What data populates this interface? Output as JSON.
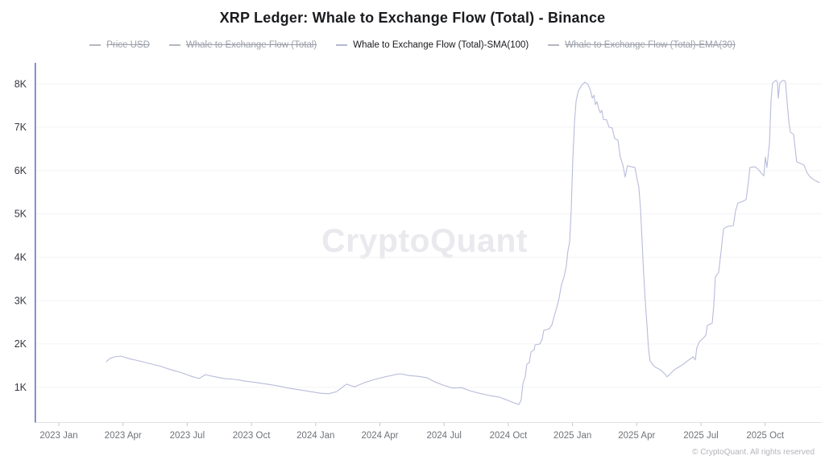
{
  "header": {
    "title": "XRP Ledger: Whale to Exchange Flow (Total) - Binance"
  },
  "watermark": {
    "text": "CryptoQuant"
  },
  "footer": {
    "copyright": "© CryptoQuant. All rights reserved"
  },
  "colors": {
    "line": "#b8bcda",
    "y_axis_line": "#6e70c4",
    "x_axis_line": "#e2e2e6",
    "grid": "#f3f3f6",
    "tick_mark": "#c9c9ce",
    "x_label": "#6f7378",
    "y_label": "#36383f",
    "legend_active_text": "#17181c",
    "legend_disabled_text": "#9a9ea8",
    "watermark_text": "#e9e9ee"
  },
  "chart_data": {
    "type": "line",
    "title": "XRP Ledger: Whale to Exchange Flow (Total) - Binance",
    "xlabel": "",
    "ylabel": "",
    "value_unit": "thousands (K)",
    "x_unit": "decimal year",
    "grid": "horizontal",
    "legend_position": "top",
    "ylim_thousands": [
      0,
      8.6
    ],
    "legend_entries": [
      {
        "label": "Price USD",
        "active": false
      },
      {
        "label": "Whale to Exchange Flow (Total)",
        "active": false
      },
      {
        "label": "Whale to Exchange Flow (Total)-SMA(100)",
        "active": true
      },
      {
        "label": "Whale to Exchange Flow (Total)-EMA(30)",
        "active": false
      }
    ],
    "y_ticks": [
      {
        "label": "1K",
        "v": 1
      },
      {
        "label": "2K",
        "v": 2
      },
      {
        "label": "3K",
        "v": 3
      },
      {
        "label": "4K",
        "v": 4
      },
      {
        "label": "5K",
        "v": 5
      },
      {
        "label": "6K",
        "v": 6
      },
      {
        "label": "7K",
        "v": 7
      },
      {
        "label": "8K",
        "v": 8
      }
    ],
    "x_ticks": [
      {
        "label": "2023 Jan",
        "t": 2023.0
      },
      {
        "label": "2023 Apr",
        "t": 2023.25
      },
      {
        "label": "2023 Jul",
        "t": 2023.5
      },
      {
        "label": "2023 Oct",
        "t": 2023.75
      },
      {
        "label": "2024 Jan",
        "t": 2024.0
      },
      {
        "label": "2024 Apr",
        "t": 2024.25
      },
      {
        "label": "2024 Jul",
        "t": 2024.5
      },
      {
        "label": "2024 Oct",
        "t": 2024.75
      },
      {
        "label": "2025 Jan",
        "t": 2025.0
      },
      {
        "label": "2025 Apr",
        "t": 2025.25
      },
      {
        "label": "2025 Jul",
        "t": 2025.5
      },
      {
        "label": "2025 Oct",
        "t": 2025.75
      }
    ],
    "series": [
      {
        "name": "Whale to Exchange Flow (Total)-SMA(100)",
        "visible": true,
        "points": [
          [
            2023.185,
            1.59
          ],
          [
            2023.198,
            1.66
          ],
          [
            2023.216,
            1.7
          ],
          [
            2023.242,
            1.72
          ],
          [
            2023.273,
            1.66
          ],
          [
            2023.311,
            1.61
          ],
          [
            2023.351,
            1.55
          ],
          [
            2023.398,
            1.48
          ],
          [
            2023.439,
            1.4
          ],
          [
            2023.48,
            1.33
          ],
          [
            2023.518,
            1.25
          ],
          [
            2023.546,
            1.2
          ],
          [
            2023.571,
            1.29
          ],
          [
            2023.602,
            1.25
          ],
          [
            2023.643,
            1.2
          ],
          [
            2023.687,
            1.18
          ],
          [
            2023.728,
            1.14
          ],
          [
            2023.768,
            1.11
          ],
          [
            2023.812,
            1.07
          ],
          [
            2023.853,
            1.03
          ],
          [
            2023.894,
            0.98
          ],
          [
            2023.938,
            0.94
          ],
          [
            2023.979,
            0.9
          ],
          [
            2024.019,
            0.86
          ],
          [
            2024.051,
            0.85
          ],
          [
            2024.082,
            0.9
          ],
          [
            2024.12,
            1.07
          ],
          [
            2024.151,
            1.01
          ],
          [
            2024.192,
            1.11
          ],
          [
            2024.23,
            1.18
          ],
          [
            2024.27,
            1.24
          ],
          [
            2024.308,
            1.29
          ],
          [
            2024.33,
            1.31
          ],
          [
            2024.364,
            1.27
          ],
          [
            2024.402,
            1.25
          ],
          [
            2024.433,
            1.22
          ],
          [
            2024.465,
            1.12
          ],
          [
            2024.496,
            1.05
          ],
          [
            2024.534,
            0.98
          ],
          [
            2024.568,
            0.99
          ],
          [
            2024.6,
            0.92
          ],
          [
            2024.637,
            0.86
          ],
          [
            2024.675,
            0.81
          ],
          [
            2024.716,
            0.77
          ],
          [
            2024.747,
            0.7
          ],
          [
            2024.772,
            0.64
          ],
          [
            2024.791,
            0.6
          ],
          [
            2024.8,
            0.7
          ],
          [
            2024.807,
            1.09
          ],
          [
            2024.816,
            1.24
          ],
          [
            2024.822,
            1.53
          ],
          [
            2024.832,
            1.57
          ],
          [
            2024.838,
            1.81
          ],
          [
            2024.851,
            1.87
          ],
          [
            2024.854,
            1.98
          ],
          [
            2024.873,
            2.0
          ],
          [
            2024.882,
            2.11
          ],
          [
            2024.888,
            2.31
          ],
          [
            2024.91,
            2.35
          ],
          [
            2024.92,
            2.44
          ],
          [
            2024.929,
            2.65
          ],
          [
            2024.938,
            2.82
          ],
          [
            2024.948,
            3.06
          ],
          [
            2024.957,
            3.37
          ],
          [
            2024.967,
            3.54
          ],
          [
            2024.976,
            3.8
          ],
          [
            2024.982,
            4.14
          ],
          [
            2024.989,
            4.36
          ],
          [
            2024.995,
            5.1
          ],
          [
            2025.001,
            6.22
          ],
          [
            2025.008,
            7.15
          ],
          [
            2025.014,
            7.61
          ],
          [
            2025.023,
            7.84
          ],
          [
            2025.036,
            7.97
          ],
          [
            2025.048,
            8.04
          ],
          [
            2025.061,
            7.98
          ],
          [
            2025.07,
            7.85
          ],
          [
            2025.077,
            7.67
          ],
          [
            2025.083,
            7.74
          ],
          [
            2025.089,
            7.52
          ],
          [
            2025.095,
            7.59
          ],
          [
            2025.102,
            7.43
          ],
          [
            2025.108,
            7.33
          ],
          [
            2025.114,
            7.39
          ],
          [
            2025.12,
            7.18
          ],
          [
            2025.133,
            7.17
          ],
          [
            2025.142,
            7.0
          ],
          [
            2025.155,
            6.98
          ],
          [
            2025.164,
            6.74
          ],
          [
            2025.177,
            6.7
          ],
          [
            2025.186,
            6.31
          ],
          [
            2025.196,
            6.13
          ],
          [
            2025.205,
            5.85
          ],
          [
            2025.214,
            6.11
          ],
          [
            2025.227,
            6.09
          ],
          [
            2025.243,
            6.07
          ],
          [
            2025.252,
            5.79
          ],
          [
            2025.258,
            5.62
          ],
          [
            2025.265,
            5.1
          ],
          [
            2025.271,
            4.36
          ],
          [
            2025.277,
            3.62
          ],
          [
            2025.283,
            3.02
          ],
          [
            2025.29,
            2.41
          ],
          [
            2025.296,
            1.87
          ],
          [
            2025.302,
            1.61
          ],
          [
            2025.312,
            1.52
          ],
          [
            2025.324,
            1.46
          ],
          [
            2025.343,
            1.4
          ],
          [
            2025.359,
            1.31
          ],
          [
            2025.368,
            1.24
          ],
          [
            2025.381,
            1.31
          ],
          [
            2025.396,
            1.4
          ],
          [
            2025.412,
            1.46
          ],
          [
            2025.431,
            1.53
          ],
          [
            2025.453,
            1.63
          ],
          [
            2025.469,
            1.7
          ],
          [
            2025.478,
            1.63
          ],
          [
            2025.484,
            1.91
          ],
          [
            2025.494,
            2.05
          ],
          [
            2025.509,
            2.13
          ],
          [
            2025.519,
            2.2
          ],
          [
            2025.525,
            2.43
          ],
          [
            2025.544,
            2.48
          ],
          [
            2025.55,
            2.87
          ],
          [
            2025.556,
            3.54
          ],
          [
            2025.569,
            3.65
          ],
          [
            2025.579,
            4.17
          ],
          [
            2025.588,
            4.66
          ],
          [
            2025.604,
            4.71
          ],
          [
            2025.626,
            4.73
          ],
          [
            2025.635,
            5.07
          ],
          [
            2025.644,
            5.25
          ],
          [
            2025.663,
            5.29
          ],
          [
            2025.676,
            5.33
          ],
          [
            2025.685,
            5.75
          ],
          [
            2025.691,
            6.07
          ],
          [
            2025.71,
            6.09
          ],
          [
            2025.723,
            6.03
          ],
          [
            2025.735,
            5.94
          ],
          [
            2025.745,
            5.88
          ],
          [
            2025.751,
            6.31
          ],
          [
            2025.757,
            6.07
          ],
          [
            2025.767,
            6.63
          ],
          [
            2025.773,
            7.61
          ],
          [
            2025.779,
            8.02
          ],
          [
            2025.792,
            8.08
          ],
          [
            2025.798,
            8.04
          ],
          [
            2025.801,
            7.67
          ],
          [
            2025.807,
            8.02
          ],
          [
            2025.82,
            8.08
          ],
          [
            2025.829,
            8.06
          ],
          [
            2025.836,
            7.56
          ],
          [
            2025.842,
            7.15
          ],
          [
            2025.848,
            6.89
          ],
          [
            2025.861,
            6.83
          ],
          [
            2025.867,
            6.5
          ],
          [
            2025.873,
            6.2
          ],
          [
            2025.889,
            6.16
          ],
          [
            2025.901,
            6.13
          ],
          [
            2025.914,
            5.94
          ],
          [
            2025.926,
            5.85
          ],
          [
            2025.939,
            5.79
          ],
          [
            2025.951,
            5.75
          ],
          [
            2025.961,
            5.72
          ]
        ]
      }
    ]
  }
}
